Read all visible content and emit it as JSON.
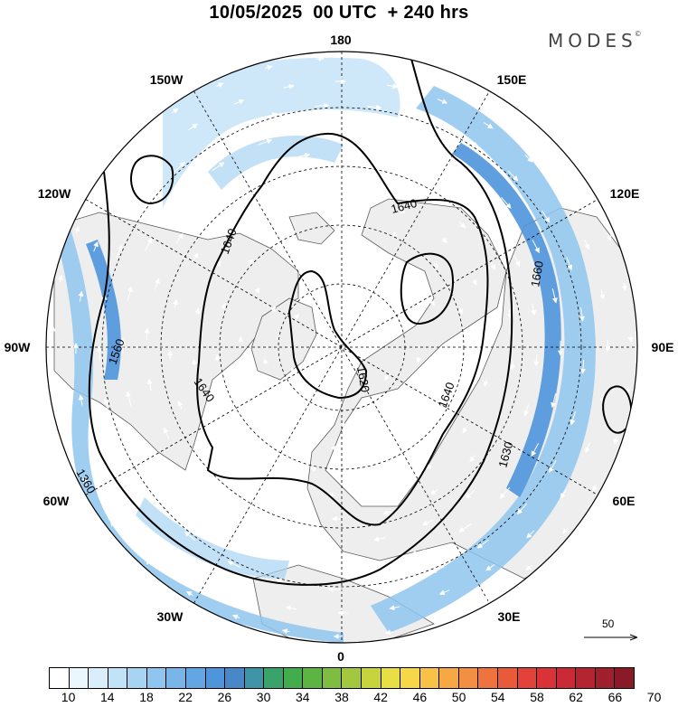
{
  "title": "10/05/2025  00 UTC  + 240 hrs",
  "logo": "MODES",
  "logo_mark": "©",
  "longitude_labels": [
    "180",
    "150E",
    "120E",
    "90E",
    "60E",
    "30E",
    "0",
    "30W",
    "60W",
    "90W",
    "120W",
    "150W"
  ],
  "contour_labels": [
    "1640",
    "1660",
    "1640",
    "1620",
    "1630",
    "1640",
    "1560",
    "1360",
    "1640"
  ],
  "reference_vector": {
    "label": "50"
  },
  "colorbar": {
    "tick_labels": [
      "10",
      "14",
      "18",
      "22",
      "26",
      "30",
      "34",
      "38",
      "42",
      "46",
      "50",
      "54",
      "58",
      "62",
      "66",
      "70"
    ],
    "colors": [
      "#ffffff",
      "#ecf6fd",
      "#d9edfb",
      "#c2e2f8",
      "#a8d4f4",
      "#8fc5ef",
      "#78b6ea",
      "#62a6e3",
      "#4e95db",
      "#4888c8",
      "#3f94a7",
      "#3aa36b",
      "#42ad4a",
      "#5cb443",
      "#7fbd41",
      "#a3c83f",
      "#c8d43e",
      "#e8df46",
      "#f6d747",
      "#f8c246",
      "#f5a844",
      "#f28f42",
      "#ee733f",
      "#e95a3b",
      "#e3423a",
      "#d93337",
      "#c92a35",
      "#b52431",
      "#9f1f2d",
      "#8a1a28"
    ]
  },
  "icons": {
    "reference_arrow": "arrow-right-icon"
  }
}
